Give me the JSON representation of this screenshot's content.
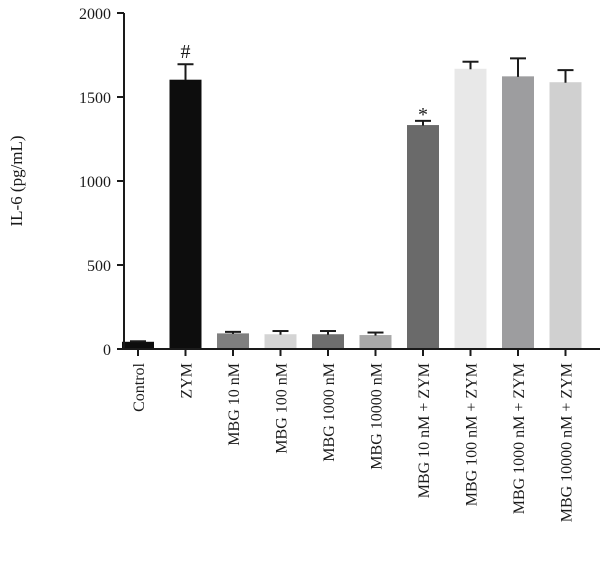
{
  "chart_data": {
    "type": "bar",
    "title": "",
    "xlabel": "",
    "ylabel": "IL-6 (pg/mL)",
    "ylim": [
      0,
      2000
    ],
    "yticks": [
      "0",
      "500",
      "1000",
      "1500",
      "2000"
    ],
    "categories": [
      "Control",
      "ZYM",
      "MBG 10 nM",
      "MBG 100 nM",
      "MBG 1000 nM",
      "MBG 10000 nM",
      "MBG 10 nM + ZYM",
      "MBG 100 nM + ZYM",
      "MBG 1000 nM + ZYM",
      "MBG 10000 nM + ZYM"
    ],
    "values": [
      40,
      1600,
      90,
      85,
      85,
      80,
      1330,
      1665,
      1620,
      1585
    ],
    "errors": [
      6,
      95,
      12,
      22,
      22,
      18,
      28,
      45,
      110,
      75
    ],
    "bar_colors": [
      "#0d0d0d",
      "#0d0d0d",
      "#7f7f7f",
      "#d4d4d4",
      "#6e6e6e",
      "#a8a8a8",
      "#6a6a6a",
      "#e8e8e8",
      "#9d9d9f",
      "#d0d0d0"
    ],
    "annotations": [
      {
        "category": "ZYM",
        "text": "#"
      },
      {
        "category": "MBG 10 nM + ZYM",
        "text": "*"
      }
    ],
    "grid": false,
    "legend": "none"
  }
}
